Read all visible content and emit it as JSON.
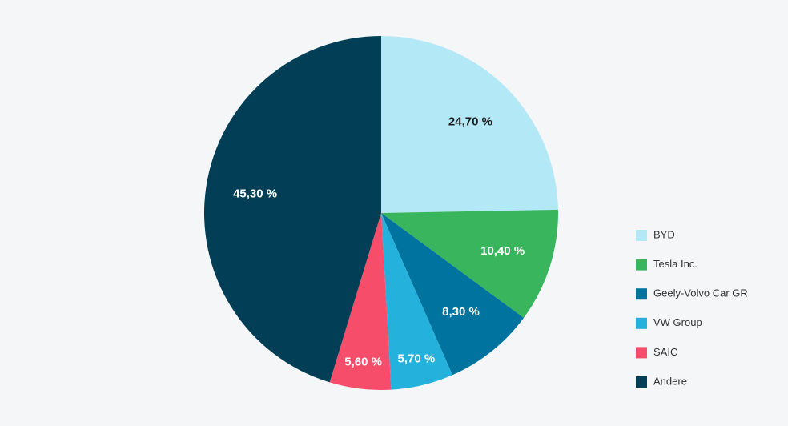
{
  "chart_data": {
    "type": "pie",
    "categories": [
      "BYD",
      "Tesla Inc.",
      "Geely-Volvo Car GR",
      "VW Group",
      "SAIC",
      "Andere"
    ],
    "values": [
      24.7,
      10.4,
      8.3,
      5.7,
      5.6,
      45.3
    ],
    "value_labels": [
      "24,70 %",
      "10,40 %",
      "8,30 %",
      "5,70 %",
      "5,60 %",
      "45,30 %"
    ],
    "colors": [
      "#b3e9f7",
      "#39b55e",
      "#00739e",
      "#24b2dd",
      "#f64d6a",
      "#023f57"
    ],
    "legend": "right"
  }
}
